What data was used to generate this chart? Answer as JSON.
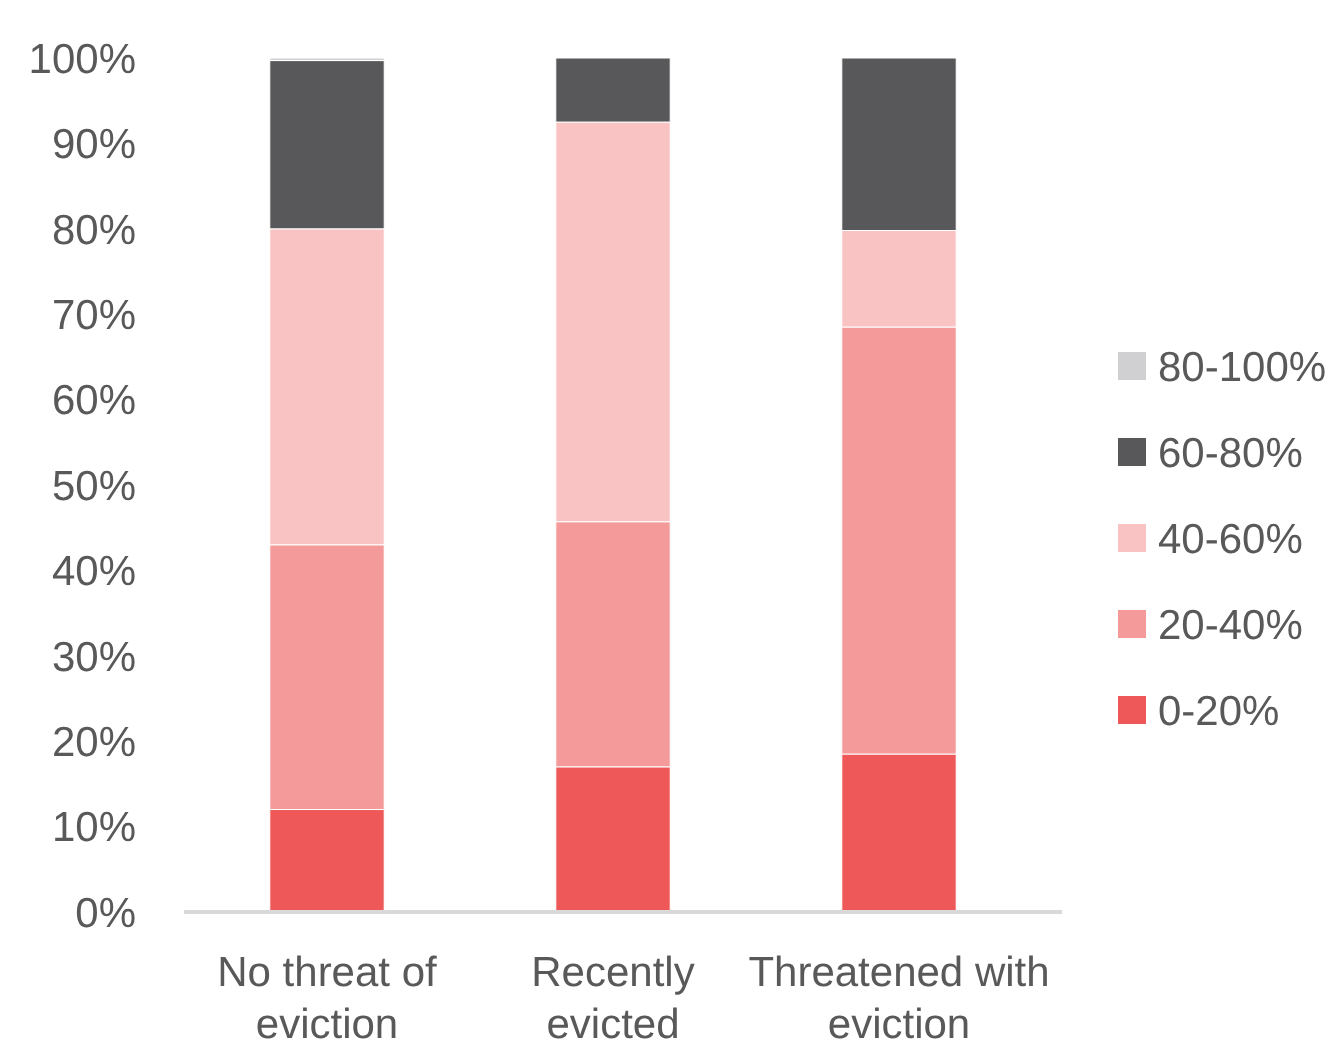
{
  "chart_data": {
    "type": "bar",
    "stacked": true,
    "categories": [
      "No threat of eviction",
      "Recently evicted",
      "Threatened with eviction"
    ],
    "series": [
      {
        "name": "0-20%",
        "color": "#ee5859",
        "values": [
          12,
          17,
          18.5
        ]
      },
      {
        "name": "20-40%",
        "color": "#f49a9a",
        "values": [
          31,
          28.7,
          50
        ]
      },
      {
        "name": "40-60%",
        "color": "#f9c3c4",
        "values": [
          37,
          46.8,
          11.3
        ]
      },
      {
        "name": "60-80%",
        "color": "#58585a",
        "values": [
          19.7,
          7.5,
          20.2
        ]
      },
      {
        "name": "80-100%",
        "color": "#d0d0d2",
        "values": [
          0.3,
          0,
          0
        ]
      }
    ],
    "ylim": [
      0,
      100
    ],
    "yticks": [
      {
        "value": 0,
        "label": "0%"
      },
      {
        "value": 10,
        "label": "10%"
      },
      {
        "value": 20,
        "label": "20%"
      },
      {
        "value": 30,
        "label": "30%"
      },
      {
        "value": 40,
        "label": "40%"
      },
      {
        "value": 50,
        "label": "50%"
      },
      {
        "value": 60,
        "label": "60%"
      },
      {
        "value": 70,
        "label": "70%"
      },
      {
        "value": 80,
        "label": "80%"
      },
      {
        "value": 90,
        "label": "90%"
      },
      {
        "value": 100,
        "label": "100%"
      }
    ],
    "grid": false,
    "legend": "right"
  }
}
